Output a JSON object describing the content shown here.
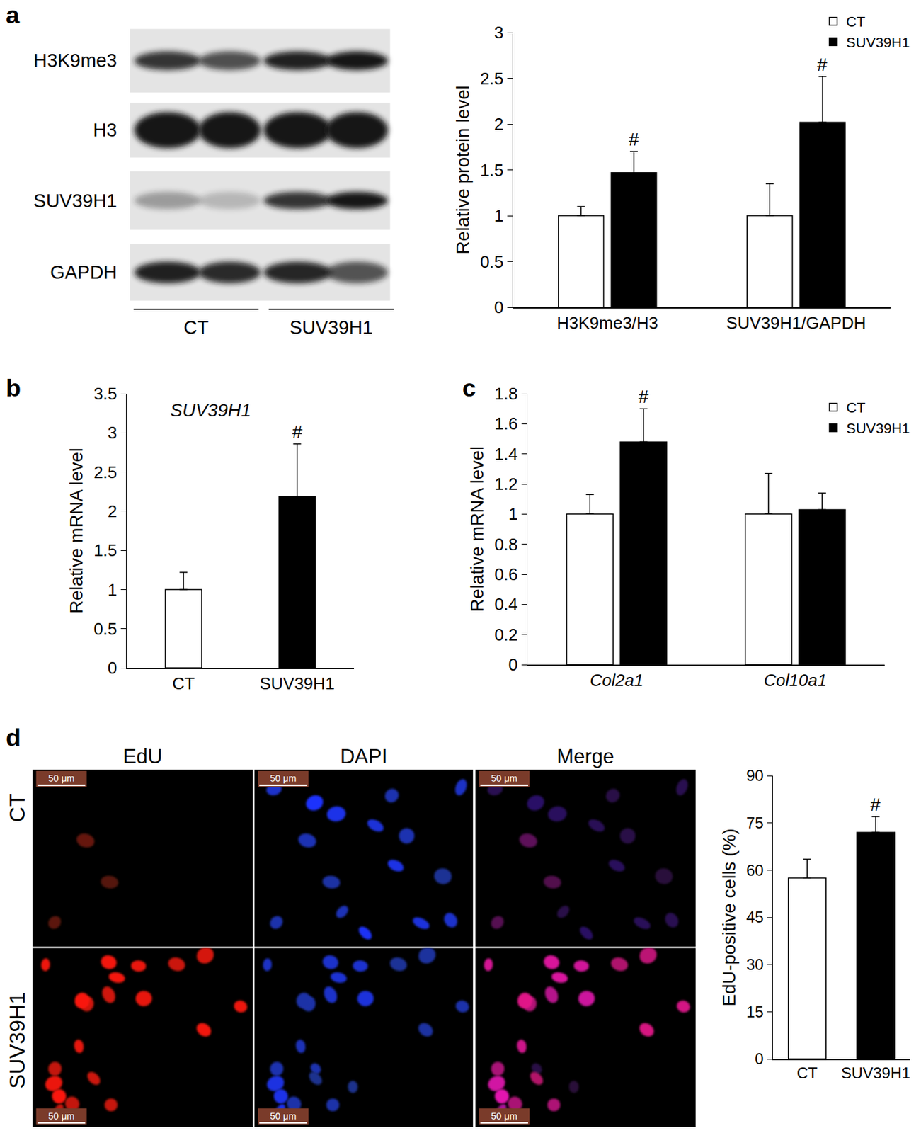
{
  "panel_labels": [
    "a",
    "b",
    "c",
    "d"
  ],
  "blot": {
    "rows": [
      "H3K9me3",
      "H3",
      "SUV39H1",
      "GAPDH"
    ],
    "groups": [
      "CT",
      "SUV39H1"
    ]
  },
  "micrographs": {
    "columns": [
      "EdU",
      "DAPI",
      "Merge"
    ],
    "rows": [
      "CT",
      "SUV39H1"
    ],
    "scale_bar": "50 μm"
  },
  "chart_data": [
    {
      "type": "bar",
      "y_label": "Relative protein level",
      "categories": [
        "H3K9me3/H3",
        "SUV39H1/GAPDH"
      ],
      "series": [
        {
          "name": "CT",
          "color": "#ffffff",
          "values": [
            1,
            1
          ],
          "errors": [
            0.1,
            0.35
          ]
        },
        {
          "name": "SUV39H1",
          "color": "#000000",
          "values": [
            1.47,
            2.02
          ],
          "errors": [
            0.23,
            0.5
          ]
        }
      ],
      "ylim": [
        0,
        3
      ],
      "yticks": [
        0,
        0.5,
        1,
        1.5,
        2,
        2.5,
        3
      ],
      "grid": false,
      "legend": "top right",
      "annotations": [
        {
          "text": "#",
          "category": "H3K9me3/H3",
          "series": "SUV39H1"
        },
        {
          "text": "#",
          "category": "SUV39H1/GAPDH",
          "series": "SUV39H1"
        }
      ]
    },
    {
      "type": "bar",
      "title": "SUV39H1",
      "y_label": "Relative mRNA level",
      "categories": [
        "CT",
        "SUV39H1"
      ],
      "values": [
        1,
        2.19
      ],
      "errors": [
        0.22,
        0.67
      ],
      "colors": [
        "#ffffff",
        "#000000"
      ],
      "ylim": [
        0,
        3.5
      ],
      "yticks": [
        0,
        0.5,
        1,
        1.5,
        2,
        2.5,
        3,
        3.5
      ],
      "grid": false,
      "annotations": [
        {
          "text": "#",
          "category": "SUV39H1"
        }
      ]
    },
    {
      "type": "bar",
      "y_label": "Relative mRNA level",
      "categories": [
        "Col2a1",
        "Col10a1"
      ],
      "series": [
        {
          "name": "CT",
          "color": "#ffffff",
          "values": [
            1,
            1
          ],
          "errors": [
            0.13,
            0.27
          ]
        },
        {
          "name": "SUV39H1",
          "color": "#000000",
          "values": [
            1.48,
            1.03
          ],
          "errors": [
            0.22,
            0.11
          ]
        }
      ],
      "ylim": [
        0,
        1.8
      ],
      "yticks": [
        0,
        0.2,
        0.4,
        0.6,
        0.8,
        1,
        1.2,
        1.4,
        1.6,
        1.8
      ],
      "grid": false,
      "legend": "top right",
      "annotations": [
        {
          "text": "#",
          "category": "Col2a1",
          "series": "SUV39H1"
        }
      ]
    },
    {
      "type": "bar",
      "y_label": "EdU-positive cells (%)",
      "categories": [
        "CT",
        "SUV39H1"
      ],
      "values": [
        57.5,
        72
      ],
      "errors": [
        6,
        5
      ],
      "colors": [
        "#ffffff",
        "#000000"
      ],
      "ylim": [
        0,
        90
      ],
      "yticks": [
        0,
        15,
        30,
        45,
        60,
        75,
        90
      ],
      "grid": false,
      "annotations": [
        {
          "text": "#",
          "category": "SUV39H1"
        }
      ]
    }
  ]
}
